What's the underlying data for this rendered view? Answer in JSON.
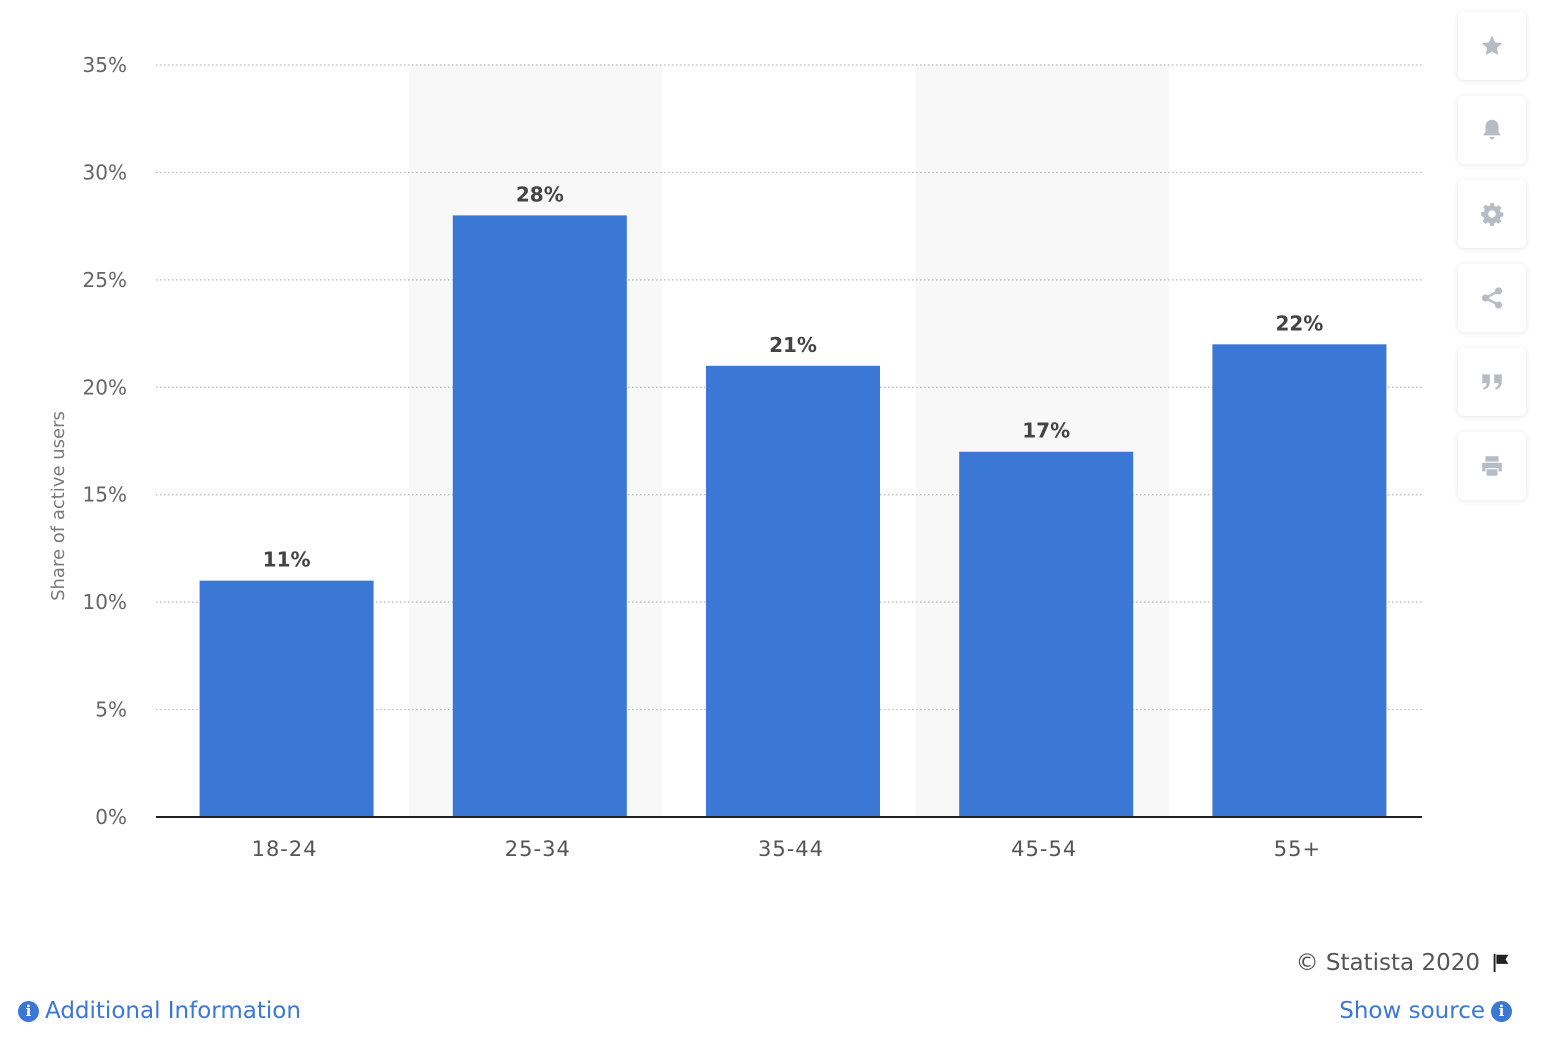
{
  "chart_data": {
    "type": "bar",
    "categories": [
      "18-24",
      "25-34",
      "35-44",
      "45-54",
      "55+"
    ],
    "values": [
      11,
      28,
      21,
      17,
      22
    ],
    "data_labels": [
      "11%",
      "28%",
      "21%",
      "17%",
      "22%"
    ],
    "title": "",
    "xlabel": "",
    "ylabel": "Share of active users",
    "ylim": [
      0,
      35
    ],
    "yticks": [
      0,
      5,
      10,
      15,
      20,
      25,
      30,
      35
    ],
    "ytick_labels": [
      "0%",
      "5%",
      "10%",
      "15%",
      "20%",
      "25%",
      "30%",
      "35%"
    ],
    "grid": true,
    "bar_color": "#3b78d6",
    "alt_band_color": "#f8f8f8"
  },
  "sidebar": {
    "buttons": [
      {
        "icon": "star-icon"
      },
      {
        "icon": "bell-icon"
      },
      {
        "icon": "gear-icon"
      },
      {
        "icon": "share-icon"
      },
      {
        "icon": "quote-icon"
      },
      {
        "icon": "print-icon"
      }
    ]
  },
  "footer": {
    "credit": "© Statista 2020",
    "additional_info": "Additional Information",
    "show_source": "Show source"
  },
  "colors": {
    "accent": "#3b78d6",
    "icon_gray": "#b5bcc4"
  }
}
